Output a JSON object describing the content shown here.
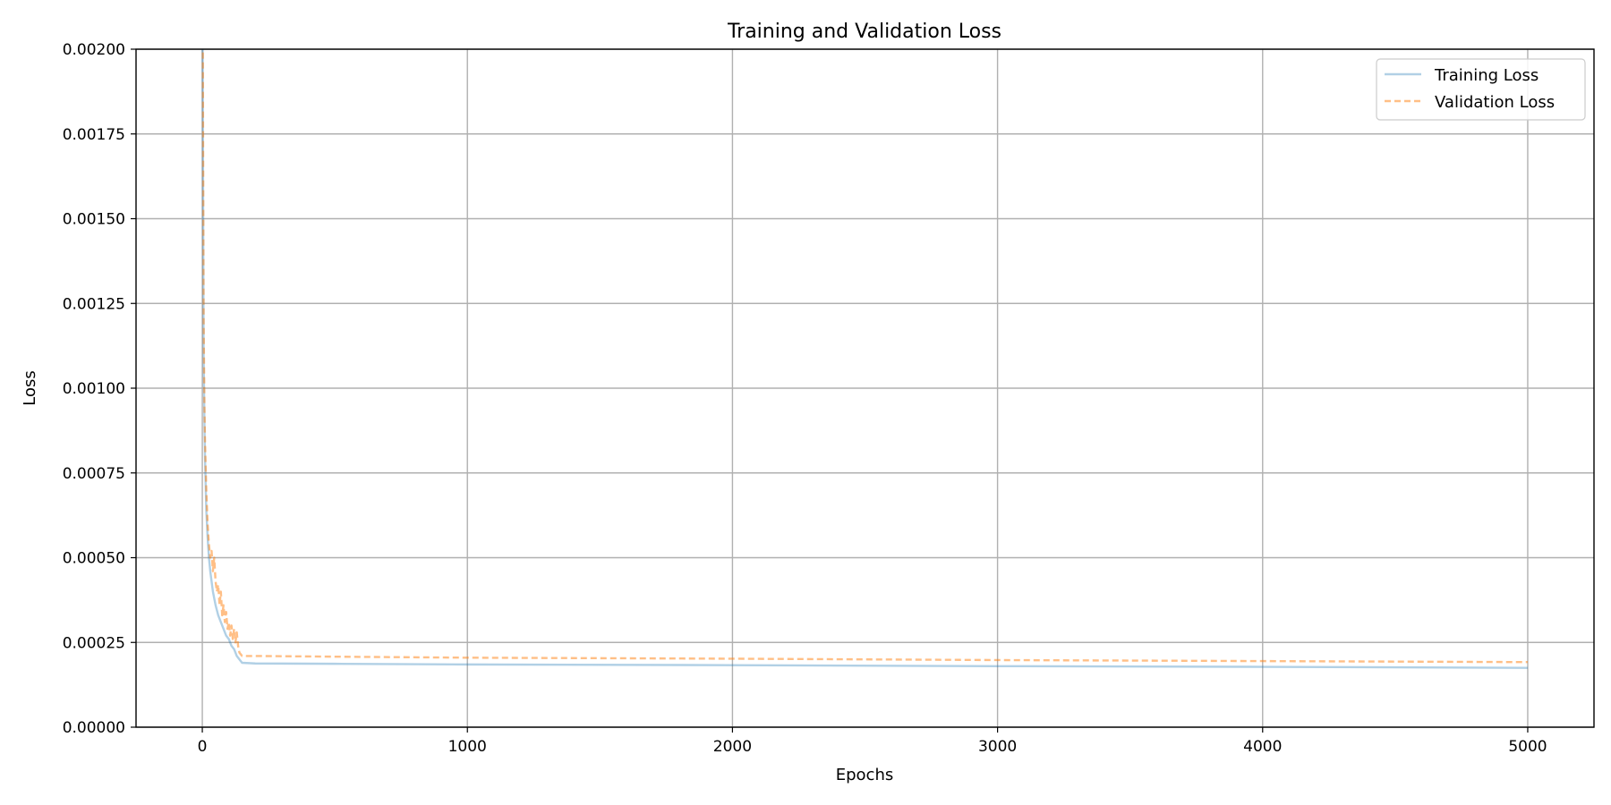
{
  "chart_data": {
    "type": "line",
    "title": "Training and Validation Loss",
    "xlabel": "Epochs",
    "ylabel": "Loss",
    "xlim": [
      -250,
      5250
    ],
    "ylim": [
      0,
      0.002
    ],
    "grid": true,
    "legend_position": "top-right",
    "x_ticks": [
      0,
      1000,
      2000,
      3000,
      4000,
      5000
    ],
    "x_tick_labels": [
      "0",
      "1000",
      "2000",
      "3000",
      "4000",
      "5000"
    ],
    "y_ticks": [
      0,
      0.00025,
      0.0005,
      0.00075,
      0.001,
      0.00125,
      0.0015,
      0.00175,
      0.002
    ],
    "y_tick_labels": [
      "0.00000",
      "0.00025",
      "0.00050",
      "0.00075",
      "0.00100",
      "0.00125",
      "0.00150",
      "0.00175",
      "0.00200"
    ],
    "series": [
      {
        "name": "Training Loss",
        "color": "#1f77b4",
        "opacity": 0.35,
        "style": "solid",
        "x": [
          0,
          2,
          5,
          8,
          10,
          15,
          20,
          25,
          30,
          40,
          50,
          60,
          70,
          80,
          90,
          100,
          110,
          120,
          130,
          140,
          150,
          200,
          500,
          1000,
          2000,
          3000,
          4000,
          5000
        ],
        "y": [
          0.0024,
          0.0018,
          0.0011,
          0.0009,
          0.0008,
          0.00064,
          0.00056,
          0.0005,
          0.00046,
          0.0004,
          0.00036,
          0.00033,
          0.00031,
          0.00029,
          0.00027,
          0.00026,
          0.00024,
          0.00023,
          0.00021,
          0.0002,
          0.00019,
          0.000188,
          0.000187,
          0.000185,
          0.000183,
          0.00018,
          0.000178,
          0.000175
        ]
      },
      {
        "name": "Validation Loss",
        "color": "#ff7f0e",
        "opacity": 0.5,
        "style": "dashed",
        "x": [
          0,
          2,
          5,
          8,
          10,
          15,
          20,
          25,
          30,
          35,
          40,
          45,
          50,
          55,
          60,
          65,
          70,
          75,
          80,
          85,
          90,
          95,
          100,
          105,
          110,
          115,
          120,
          125,
          130,
          135,
          140,
          150,
          200,
          500,
          1000,
          2000,
          3000,
          4000,
          5000
        ],
        "y": [
          0.0026,
          0.002,
          0.0012,
          0.00095,
          0.00085,
          0.0007,
          0.0006,
          0.00054,
          0.0005,
          0.00052,
          0.00046,
          0.0005,
          0.00043,
          0.0004,
          0.00042,
          0.00036,
          0.0004,
          0.00033,
          0.00036,
          0.00031,
          0.00034,
          0.00029,
          0.00031,
          0.00027,
          0.0003,
          0.00026,
          0.00029,
          0.00025,
          0.00028,
          0.00024,
          0.00022,
          0.00021,
          0.00021,
          0.000208,
          0.000205,
          0.000202,
          0.000198,
          0.000195,
          0.000192
        ]
      }
    ]
  }
}
